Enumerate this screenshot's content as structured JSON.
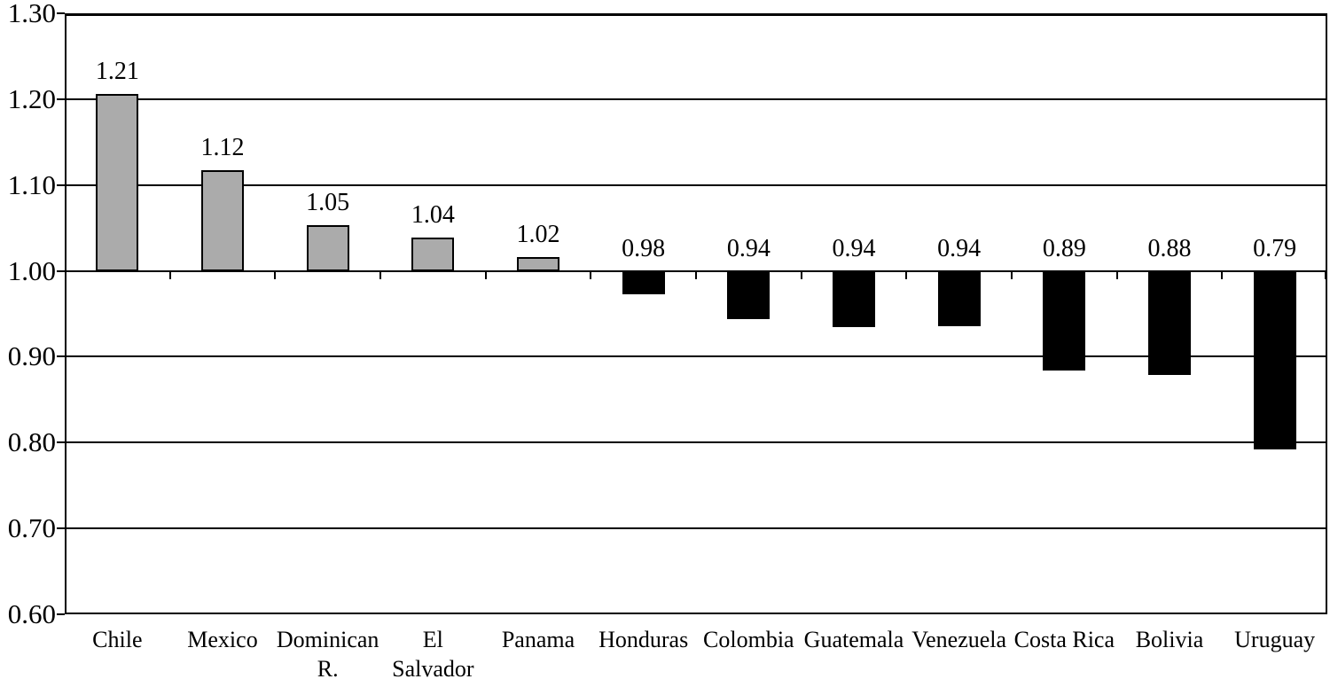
{
  "chart_data": {
    "type": "bar",
    "title": "",
    "xlabel": "",
    "ylabel": "",
    "categories": [
      "Chile",
      "Mexico",
      "Dominican R.",
      "El Salvador",
      "Panama",
      "Honduras",
      "Colombia",
      "Guatemala",
      "Venezuela",
      "Costa Rica",
      "Bolivia",
      "Uruguay"
    ],
    "category_lines": [
      [
        "Chile"
      ],
      [
        "Mexico"
      ],
      [
        "Dominican",
        "R."
      ],
      [
        "El",
        "Salvador"
      ],
      [
        "Panama"
      ],
      [
        "Honduras"
      ],
      [
        "Colombia"
      ],
      [
        "Guatemala"
      ],
      [
        "Venezuela"
      ],
      [
        "Costa Rica"
      ],
      [
        "Bolivia"
      ],
      [
        "Uruguay"
      ]
    ],
    "values": [
      1.21,
      1.12,
      1.05,
      1.04,
      1.02,
      0.98,
      0.94,
      0.94,
      0.94,
      0.89,
      0.88,
      0.79
    ],
    "value_labels": [
      "1.21",
      "1.12",
      "1.05",
      "1.04",
      "1.02",
      "0.98",
      "0.94",
      "0.94",
      "0.94",
      "0.89",
      "0.88",
      "0.79"
    ],
    "bar_values_estimated": [
      1.206,
      1.117,
      1.053,
      1.039,
      1.016,
      0.973,
      0.944,
      0.935,
      0.936,
      0.884,
      0.879,
      0.792
    ],
    "baseline": 1.0,
    "ylim": [
      0.6,
      1.3
    ],
    "y_ticks": [
      "1.30",
      "1.20",
      "1.10",
      "1.00",
      "0.90",
      "0.80",
      "0.70",
      "0.60"
    ],
    "grid": true,
    "legend": null,
    "colors": {
      "above_baseline_fill": "#ABABAB",
      "below_baseline_fill": "#000000",
      "axis_line": "#000000",
      "bar_border": "#000000",
      "text": "#000000",
      "background": "#FFFFFF"
    }
  }
}
